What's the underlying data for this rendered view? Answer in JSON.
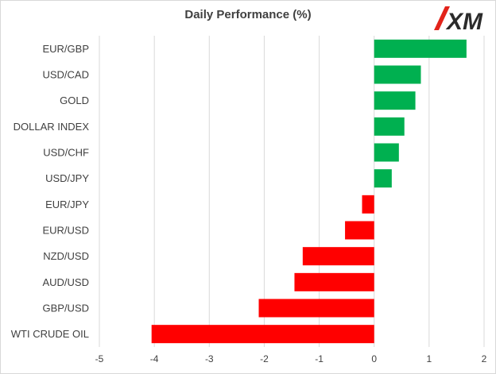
{
  "title": "Daily Performance (%)",
  "logo_text": "XM",
  "colors": {
    "positive": "#00b050",
    "negative": "#ff0000",
    "grid": "#d9d9d9",
    "logo_red": "#e2231a",
    "logo_dark": "#2b2b2b"
  },
  "chart_data": {
    "type": "bar",
    "orientation": "horizontal",
    "title": "Daily Performance (%)",
    "categories": [
      "EUR/GBP",
      "USD/CAD",
      "GOLD",
      "DOLLAR INDEX",
      "USD/CHF",
      "USD/JPY",
      "EUR/JPY",
      "EUR/USD",
      "NZD/USD",
      "AUD/USD",
      "GBP/USD",
      "WTI CRUDE OIL"
    ],
    "values": [
      1.68,
      0.85,
      0.75,
      0.55,
      0.45,
      0.32,
      -0.22,
      -0.53,
      -1.3,
      -1.45,
      -2.1,
      -4.05
    ],
    "xlim": [
      -5,
      2
    ],
    "xticks": [
      -5,
      -4,
      -3,
      -2,
      -1,
      0,
      1,
      2
    ],
    "grid": true,
    "legend": "none"
  }
}
